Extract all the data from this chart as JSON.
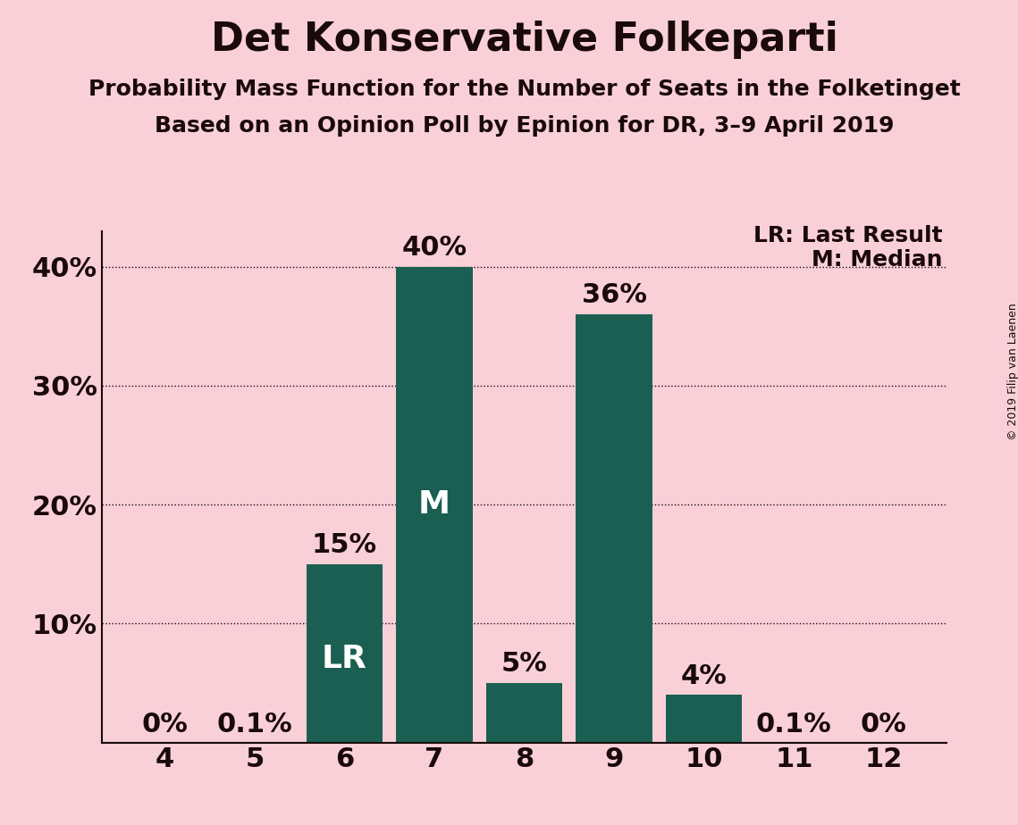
{
  "title": "Det Konservative Folkeparti",
  "subtitle1": "Probability Mass Function for the Number of Seats in the Folketinget",
  "subtitle2": "Based on an Opinion Poll by Epinion for DR, 3–9 April 2019",
  "copyright": "© 2019 Filip van Laenen",
  "categories": [
    4,
    5,
    6,
    7,
    8,
    9,
    10,
    11,
    12
  ],
  "values": [
    0.0,
    0.001,
    15.0,
    40.0,
    5.0,
    36.0,
    4.0,
    0.001,
    0.0
  ],
  "labels": [
    "0%",
    "0.1%",
    "15%",
    "40%",
    "5%",
    "36%",
    "4%",
    "0.1%",
    "0%"
  ],
  "bar_color": "#1a5f52",
  "background_color": "#f9d0d8",
  "text_color": "#1a0a0a",
  "lr_bar": 6,
  "median_bar": 7,
  "lr_label": "LR: Last Result",
  "median_label": "M: Median",
  "lr_inside": "LR",
  "m_inside": "M",
  "ylim": [
    0,
    43
  ],
  "yticks": [
    0,
    10,
    20,
    30,
    40
  ],
  "ytick_labels": [
    "",
    "10%",
    "20%",
    "30%",
    "40%"
  ],
  "grid_color": "#1a0a0a",
  "title_fontsize": 32,
  "subtitle_fontsize": 18,
  "bar_label_fontsize": 22,
  "axis_fontsize": 22,
  "legend_fontsize": 18,
  "inside_label_fontsize": 26
}
